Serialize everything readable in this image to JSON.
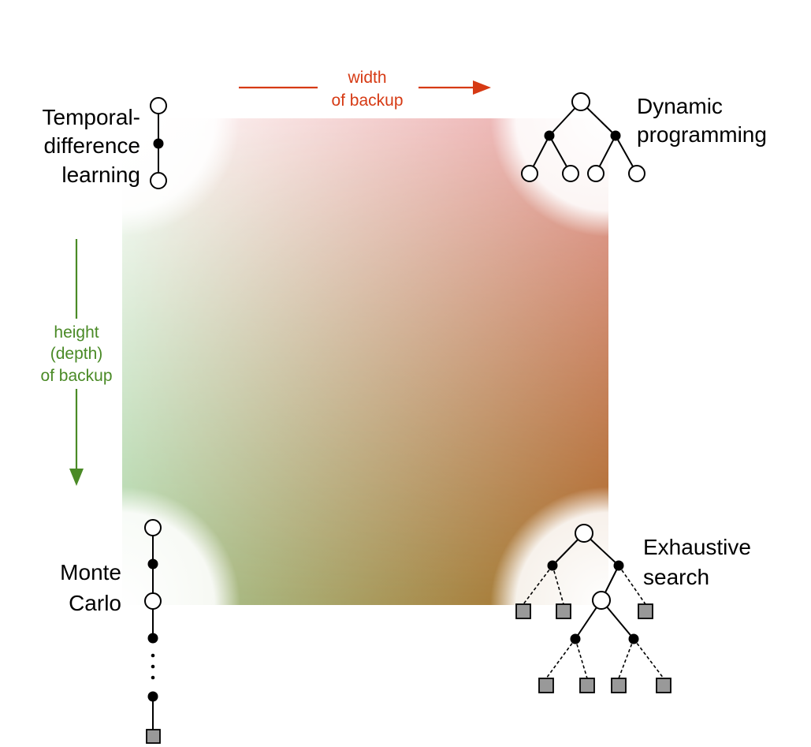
{
  "axes": {
    "width_label": [
      "width",
      "of backup"
    ],
    "height_label": [
      "height",
      "(depth)",
      "of backup"
    ],
    "width_color": "#d63a14",
    "height_color": "#4a8a26"
  },
  "corners": {
    "top_left": [
      "Temporal-",
      "difference",
      "learning"
    ],
    "top_right": [
      "Dynamic",
      "programming"
    ],
    "bottom_left": [
      "Monte",
      "Carlo"
    ],
    "bottom_right": [
      "Exhaustive",
      "search"
    ]
  },
  "gradient_colors": {
    "top_left": "#ffffff",
    "top_right": "#e9a3a3",
    "bottom_left": "#a9d2a0",
    "bottom_right": "#a8661e"
  },
  "nodes": {
    "open_icon": "open-circle-state-node",
    "filled_icon": "filled-circle-action-node",
    "terminal_icon": "gray-square-terminal-node"
  }
}
